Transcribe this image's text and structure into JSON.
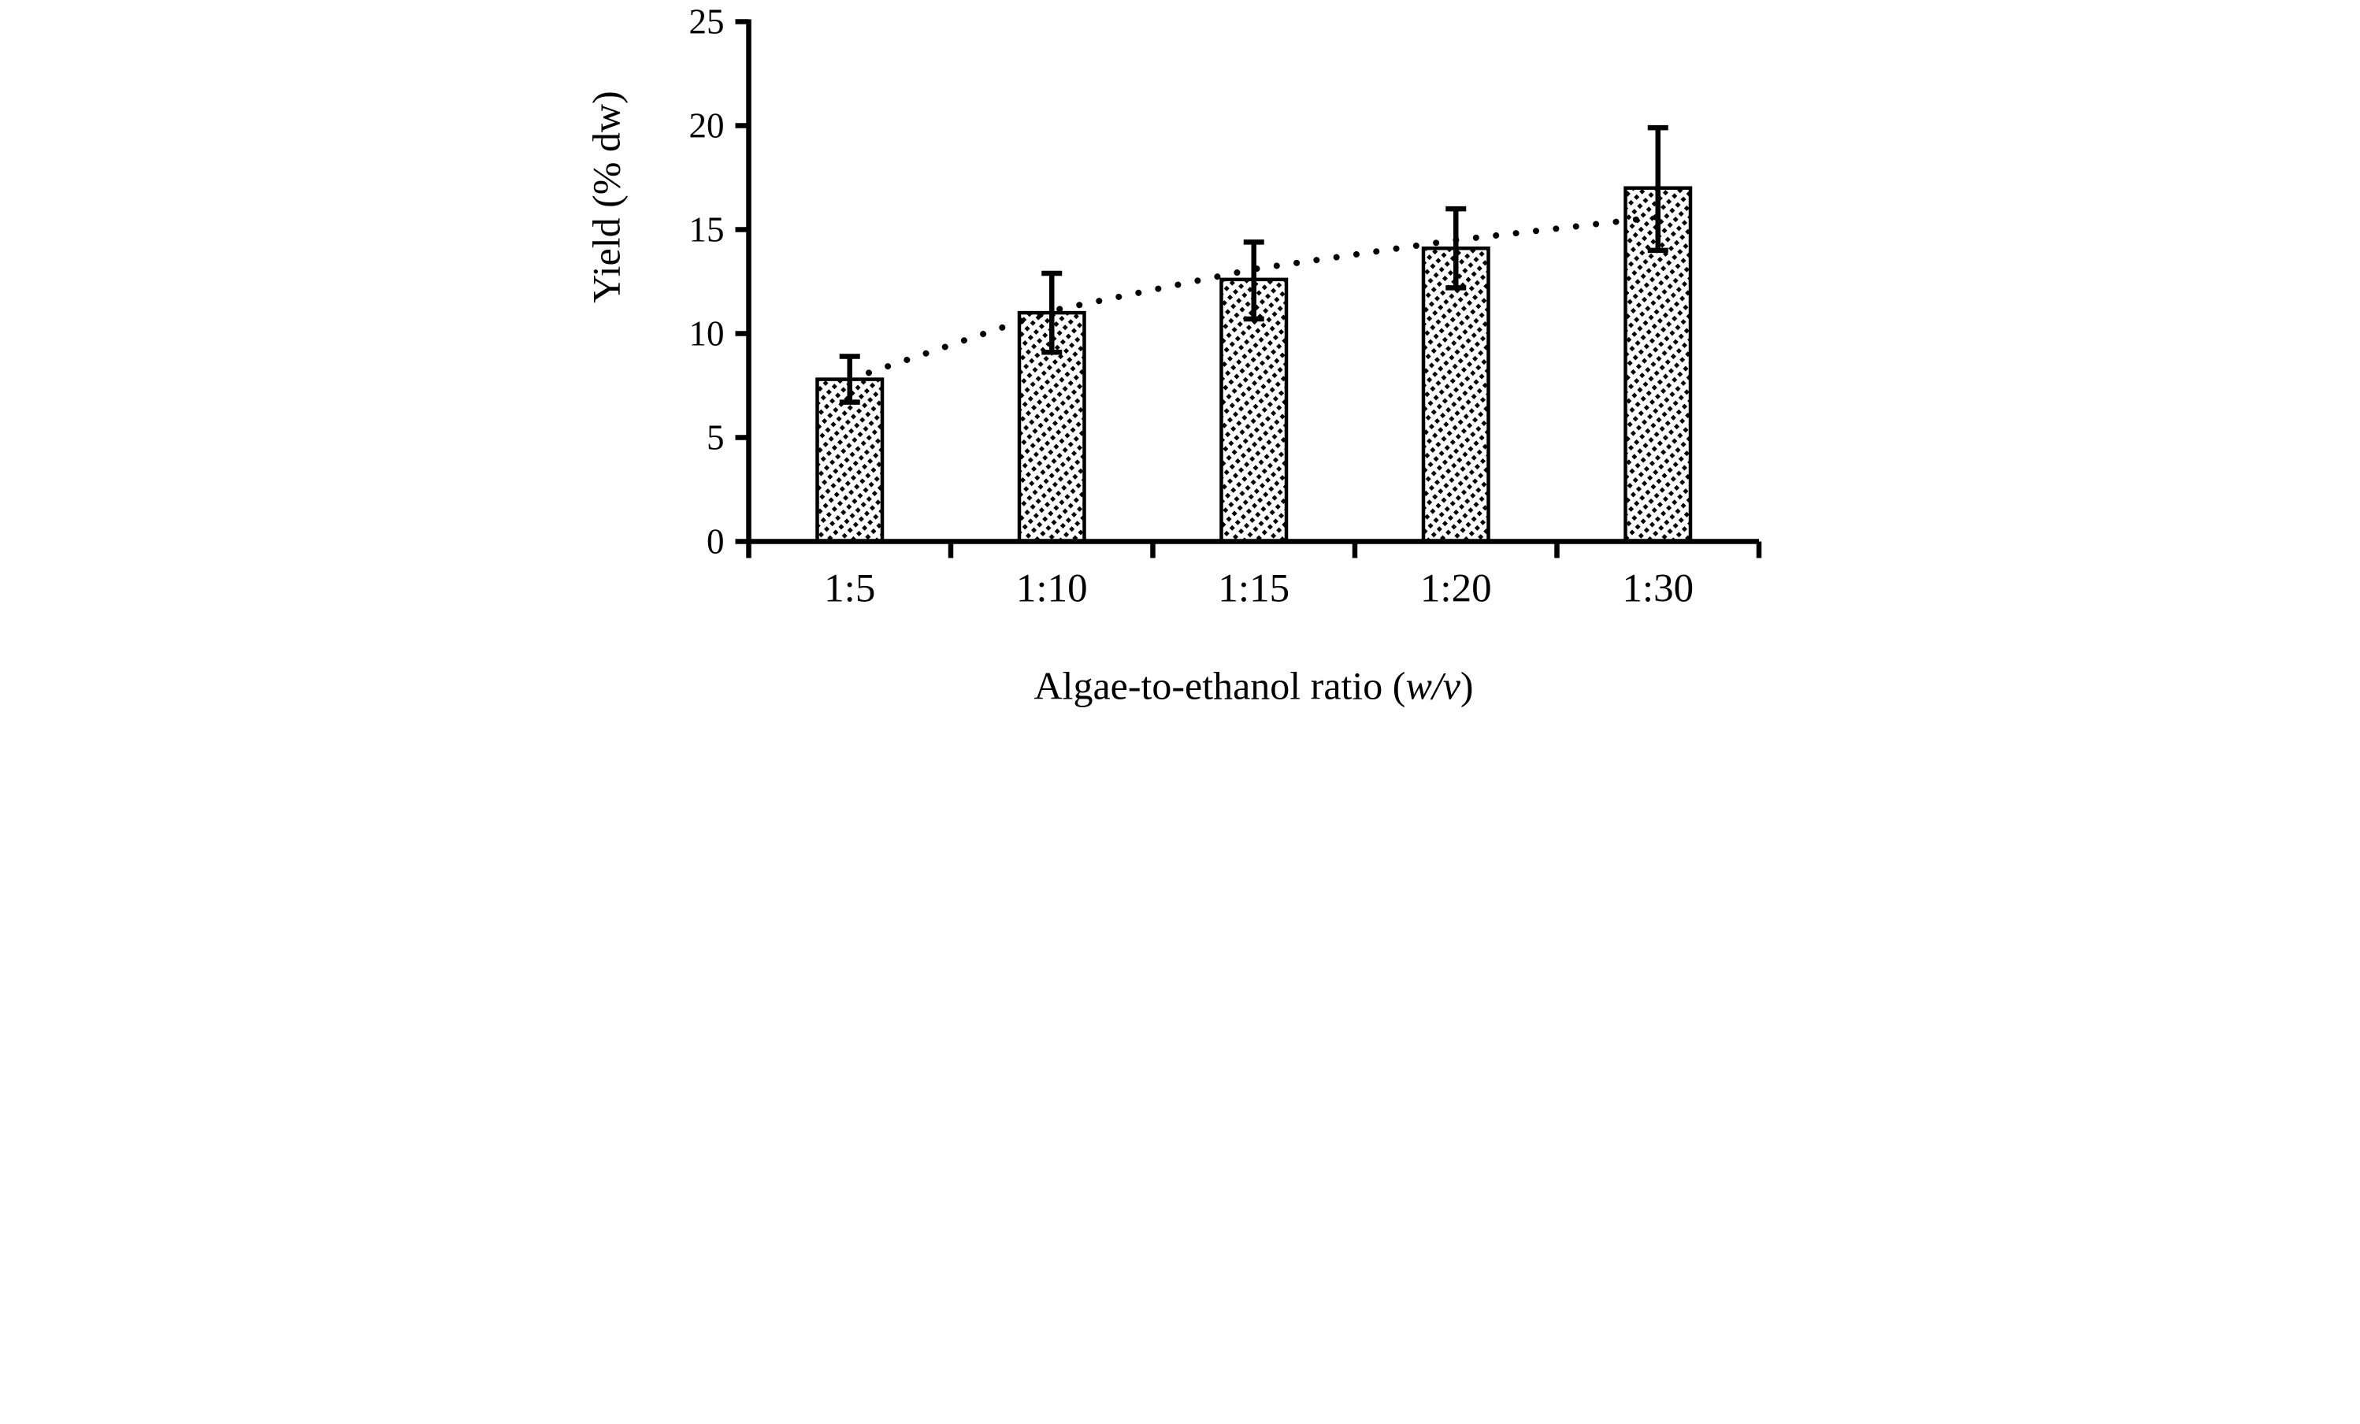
{
  "chart_data": {
    "type": "bar",
    "title": "",
    "categories": [
      "1:5",
      "1:10",
      "1:15",
      "1:20",
      "1:30"
    ],
    "values": [
      7.8,
      11.0,
      12.6,
      14.1,
      17.0
    ],
    "error_upper": [
      8.9,
      12.9,
      14.4,
      16.0,
      19.9
    ],
    "error_lower": [
      6.7,
      9.1,
      10.7,
      12.2,
      14.0
    ],
    "yticks": [
      0,
      5,
      10,
      15,
      20,
      25
    ],
    "ylim": [
      0,
      25
    ],
    "xlabel_parts": {
      "prefix": "Algae-to-ethanol ratio (",
      "italic": "w/v",
      "suffix": ")"
    },
    "ylabel": "Yield (% dw)",
    "legend": "none",
    "grid": "off",
    "bar_fill": "white-with-black-diagonal-hatch",
    "trendline": {
      "style": "dotted",
      "fit": "logarithmic",
      "values_at_categories": [
        7.8,
        11.1,
        13.1,
        14.5,
        15.6
      ]
    },
    "colors": {
      "ink": "#000000",
      "background": "#ffffff"
    }
  }
}
